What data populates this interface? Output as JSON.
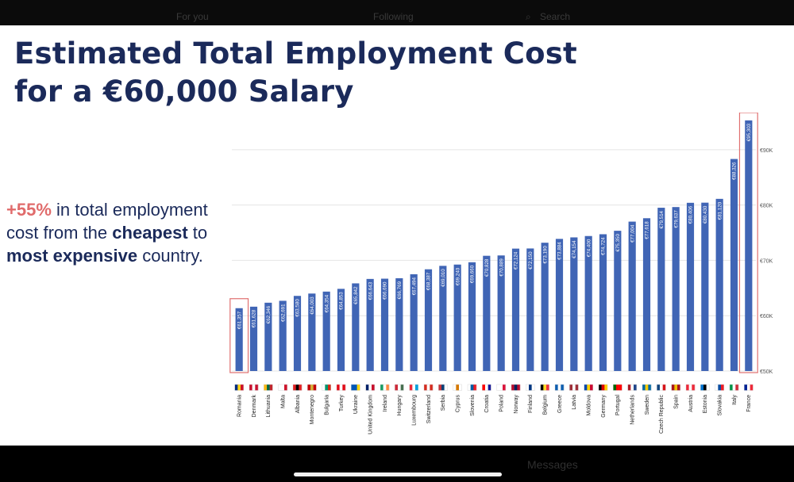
{
  "page": {
    "title_line1": "Estimated Total Employment Cost",
    "title_line2": "for a €60,000 Salary",
    "callout": {
      "highlight": "+55%",
      "text1": " in total employment cost from the ",
      "bold1": "cheapest",
      "text2": " to ",
      "bold2": "most expensive",
      "text3": " country."
    }
  },
  "background_ui": {
    "top_tabs": [
      "For you",
      "Following"
    ],
    "search_placeholder": "Search",
    "messages_label": "Messages"
  },
  "colors": {
    "bar": "#4065b5",
    "title": "#1b2a5a",
    "accent": "#e06b6b",
    "highlight_box": "#e07070"
  },
  "chart_data": {
    "type": "bar",
    "title": "",
    "xlabel": "",
    "ylabel": "",
    "ylim": [
      50000,
      96000
    ],
    "yticks": [
      50000,
      60000,
      70000,
      80000,
      90000
    ],
    "ytick_labels": [
      "€50K",
      "€60K",
      "€70K",
      "€80K",
      "€90K"
    ],
    "grid": true,
    "highlighted": [
      "Romania",
      "France"
    ],
    "categories": [
      "Romania",
      "Denmark",
      "Lithuania",
      "Malta",
      "Albania",
      "Montenegro",
      "Bulgaria",
      "Turkey",
      "Ukraine",
      "United Kingdom",
      "Ireland",
      "Hungary",
      "Luxembourg",
      "Switzerland",
      "Serbia",
      "Cyprus",
      "Slovenia",
      "Croatia",
      "Poland",
      "Norway",
      "Finland",
      "Belgium",
      "Greece",
      "Latvia",
      "Moldova",
      "Germany",
      "Portugal",
      "Netherlands",
      "Sweden",
      "Czech Republic",
      "Spain",
      "Austria",
      "Estonia",
      "Slovakia",
      "Italy",
      "France"
    ],
    "values": [
      61357,
      61628,
      62346,
      62691,
      63580,
      64003,
      64354,
      64853,
      65842,
      66643,
      66690,
      66769,
      67494,
      68387,
      69010,
      69240,
      69660,
      70828,
      70889,
      72124,
      72150,
      73190,
      73884,
      74154,
      74400,
      74724,
      75350,
      77004,
      77618,
      79514,
      79637,
      80406,
      80430,
      81120,
      88326,
      95303
    ],
    "data_labels": [
      "€61,357",
      "€61,628",
      "€62,346",
      "€62,691",
      "€63,580",
      "€64,003",
      "€64,354",
      "€64,853",
      "€65,842",
      "€66,643",
      "€66,690",
      "€66,769",
      "€67,494",
      "€68,387",
      "€69,010",
      "€69,240",
      "€69,660",
      "€70,828",
      "€70,889",
      "€72,124",
      "€72,150",
      "€73,190",
      "€73,884",
      "€74,154",
      "€74,400",
      "€74,724",
      "€75,350",
      "€77,004",
      "€77,618",
      "€79,514",
      "€79,637",
      "€80,406",
      "€80,430",
      "€81,120",
      "€88,326",
      "€95,303"
    ],
    "flag_colors": [
      [
        "#002b7f",
        "#fcd116",
        "#ce1126"
      ],
      [
        "#c8102e",
        "#ffffff",
        "#c8102e"
      ],
      [
        "#fdb913",
        "#006a44",
        "#c1272d"
      ],
      [
        "#ffffff",
        "#ffffff",
        "#cf142b"
      ],
      [
        "#e41e20",
        "#000000",
        "#e41e20"
      ],
      [
        "#c40308",
        "#d4af37",
        "#c40308"
      ],
      [
        "#ffffff",
        "#00966e",
        "#d62612"
      ],
      [
        "#e30a17",
        "#ffffff",
        "#e30a17"
      ],
      [
        "#0057b7",
        "#0057b7",
        "#ffd700"
      ],
      [
        "#012169",
        "#ffffff",
        "#c8102e"
      ],
      [
        "#169b62",
        "#ffffff",
        "#ff883e"
      ],
      [
        "#ce2939",
        "#ffffff",
        "#477050"
      ],
      [
        "#ed2939",
        "#ffffff",
        "#00a1de"
      ],
      [
        "#d52b1e",
        "#ffffff",
        "#d52b1e"
      ],
      [
        "#c6363c",
        "#0c4076",
        "#ffffff"
      ],
      [
        "#ffffff",
        "#d57800",
        "#ffffff"
      ],
      [
        "#ffffff",
        "#005da4",
        "#ed1c24"
      ],
      [
        "#ff0000",
        "#ffffff",
        "#171796"
      ],
      [
        "#ffffff",
        "#ffffff",
        "#dc143c"
      ],
      [
        "#ba0c2f",
        "#00205b",
        "#ba0c2f"
      ],
      [
        "#ffffff",
        "#003580",
        "#ffffff"
      ],
      [
        "#000000",
        "#fdda24",
        "#ef3340"
      ],
      [
        "#0d5eaf",
        "#ffffff",
        "#0d5eaf"
      ],
      [
        "#9e3039",
        "#ffffff",
        "#9e3039"
      ],
      [
        "#0046ae",
        "#ffd200",
        "#cc092f"
      ],
      [
        "#000000",
        "#dd0000",
        "#ffce00"
      ],
      [
        "#006600",
        "#ff0000",
        "#ff0000"
      ],
      [
        "#ae1c28",
        "#ffffff",
        "#21468b"
      ],
      [
        "#006aa7",
        "#fecc00",
        "#006aa7"
      ],
      [
        "#11457e",
        "#ffffff",
        "#d7141a"
      ],
      [
        "#aa151b",
        "#f1bf00",
        "#aa151b"
      ],
      [
        "#ed2939",
        "#ffffff",
        "#ed2939"
      ],
      [
        "#0072ce",
        "#000000",
        "#ffffff"
      ],
      [
        "#ffffff",
        "#0b4ea2",
        "#ee1c25"
      ],
      [
        "#009246",
        "#ffffff",
        "#ce2b37"
      ],
      [
        "#002395",
        "#ffffff",
        "#ed2939"
      ]
    ]
  }
}
